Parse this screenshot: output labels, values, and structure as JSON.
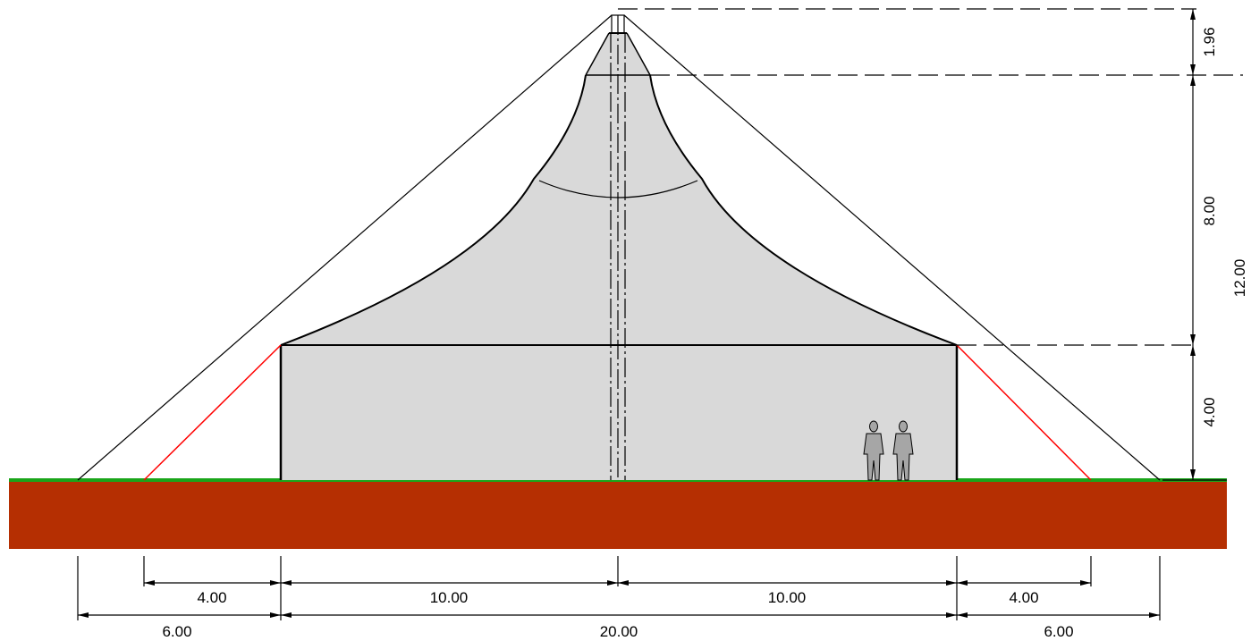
{
  "drawing": {
    "colors": {
      "ground": "#b52f02",
      "grass": "#1aa51a",
      "membrane": "#d9d9d9",
      "guy_line": "#ff0000",
      "line": "#000000",
      "figure": "#a6a6a6"
    },
    "dimensions": {
      "horizontal": {
        "row1": [
          "4.00",
          "10.00",
          "10.00",
          "4.00"
        ],
        "row2": [
          "6.00",
          "20.00",
          "6.00"
        ]
      },
      "vertical": {
        "top": "1.96",
        "middle": "8.00",
        "bottom": "4.00",
        "total": "12.00"
      }
    }
  }
}
